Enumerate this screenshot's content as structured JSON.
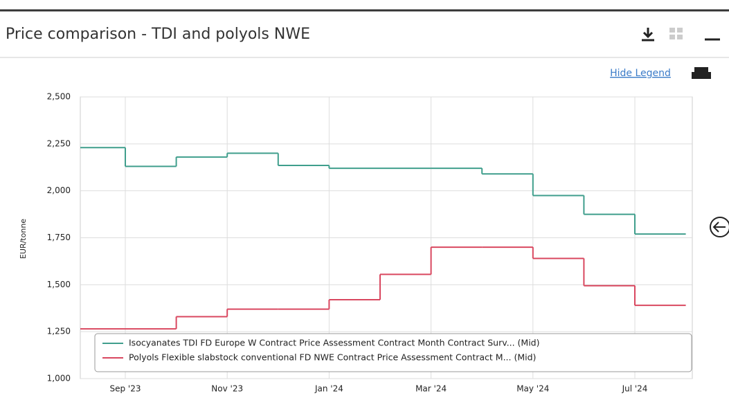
{
  "header": {
    "title": "Price comparison - TDI and polyols NWE",
    "toggle": "Hide Legend"
  },
  "chart_data": {
    "type": "step",
    "ylabel": "EUR/tonne",
    "categories": [
      null,
      "Sep '23",
      null,
      "Nov '23",
      null,
      "Jan '24",
      null,
      "Mar '24",
      null,
      "May '24",
      null,
      "Jul '24"
    ],
    "series": [
      {
        "name": "Isocyanates TDI FD Europe W Contract Price Assessment Contract Month Contract Surv... (Mid)",
        "color": "#3f9e8c",
        "values": [
          2230,
          2130,
          2180,
          2200,
          2135,
          2120,
          2120,
          2120,
          2090,
          1975,
          1875,
          1770
        ]
      },
      {
        "name": "Polyols Flexible slabstock conventional FD NWE Contract Price Assessment Contract M... (Mid)",
        "color": "#d9475f",
        "values": [
          1265,
          1265,
          1330,
          1370,
          1370,
          1420,
          1555,
          1700,
          1700,
          1640,
          1495,
          1390
        ]
      }
    ],
    "ylim": [
      1000,
      2500
    ],
    "yticks": [
      {
        "value": 1000,
        "label": "1,000"
      },
      {
        "value": 1250,
        "label": "1,250"
      },
      {
        "value": 1500,
        "label": "1,500"
      },
      {
        "value": 1750,
        "label": "1,750"
      },
      {
        "value": 2000,
        "label": "2,000"
      },
      {
        "value": 2250,
        "label": "2,250"
      },
      {
        "value": 2500,
        "label": "2,500"
      }
    ],
    "grid": true
  }
}
